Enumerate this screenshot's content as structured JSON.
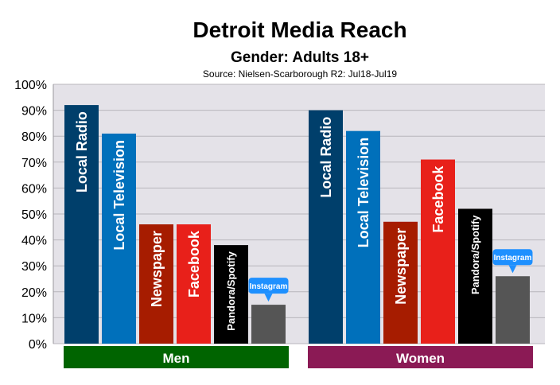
{
  "chart_data": {
    "type": "bar",
    "title": "Detroit Media Reach",
    "subtitle": "Gender: Adults 18+",
    "source": "Source: Nielsen-Scarborough R2: Jul18-Jul19",
    "ylim": [
      0,
      100
    ],
    "yticks": [
      "0%",
      "10%",
      "20%",
      "30%",
      "40%",
      "50%",
      "60%",
      "70%",
      "80%",
      "90%",
      "100%"
    ],
    "grid": true,
    "groups": [
      {
        "label": "Men",
        "color": "#006400",
        "bars": [
          {
            "label": "Local Radio",
            "value": 92,
            "color": "#003f6b"
          },
          {
            "label": "Local Television",
            "value": 81,
            "color": "#0070bb"
          },
          {
            "label": "Newspaper",
            "value": 46,
            "color": "#a61c00"
          },
          {
            "label": "Facebook",
            "value": 46,
            "color": "#e8201a"
          },
          {
            "label": "Pandora/Spotify",
            "value": 38,
            "color": "#000000"
          },
          {
            "label": "Instagram",
            "value": 15,
            "color": "#555555"
          }
        ]
      },
      {
        "label": "Women",
        "color": "#8b1a55",
        "bars": [
          {
            "label": "Local Radio",
            "value": 90,
            "color": "#003f6b"
          },
          {
            "label": "Local Television",
            "value": 82,
            "color": "#0070bb"
          },
          {
            "label": "Newspaper",
            "value": 47,
            "color": "#a61c00"
          },
          {
            "label": "Facebook",
            "value": 71,
            "color": "#e8201a"
          },
          {
            "label": "Pandora/Spotify",
            "value": 52,
            "color": "#000000"
          },
          {
            "label": "Instagram",
            "value": 26,
            "color": "#555555"
          }
        ]
      }
    ],
    "callout_color": "#1e90ff"
  }
}
